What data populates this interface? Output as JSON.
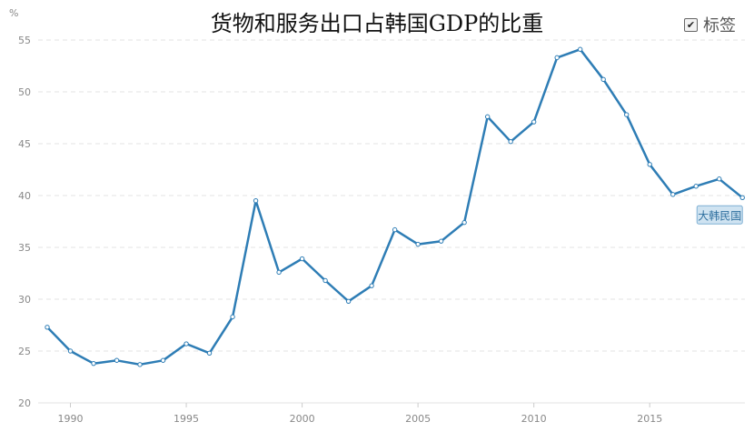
{
  "unit_label": "%",
  "legend": {
    "label": "标签",
    "checked": true
  },
  "chart_data": {
    "type": "line",
    "title": "货物和服务出口占韩国GDP的比重",
    "xlabel": "",
    "ylabel": "%",
    "ylim": [
      20,
      55
    ],
    "xlim": [
      1989,
      2019.5
    ],
    "y_ticks": [
      20,
      25,
      30,
      35,
      40,
      45,
      50,
      55
    ],
    "x_ticks": [
      1990,
      1995,
      2000,
      2005,
      2010,
      2015
    ],
    "grid": true,
    "line_color": "#2e7db5",
    "series": [
      {
        "name": "大韩民国",
        "x": [
          1989,
          1990,
          1991,
          1992,
          1993,
          1994,
          1995,
          1996,
          1997,
          1998,
          1999,
          2000,
          2001,
          2002,
          2003,
          2004,
          2005,
          2006,
          2007,
          2008,
          2009,
          2010,
          2011,
          2012,
          2013,
          2014,
          2015,
          2016,
          2017,
          2018,
          2019
        ],
        "values": [
          27.3,
          25.0,
          23.8,
          24.1,
          23.7,
          24.1,
          25.7,
          24.8,
          28.3,
          39.5,
          32.6,
          33.9,
          31.8,
          29.8,
          31.3,
          36.7,
          35.3,
          35.6,
          37.4,
          47.6,
          45.2,
          47.1,
          53.3,
          54.1,
          51.2,
          47.8,
          43.0,
          40.1,
          40.9,
          41.6,
          39.8
        ]
      }
    ]
  }
}
